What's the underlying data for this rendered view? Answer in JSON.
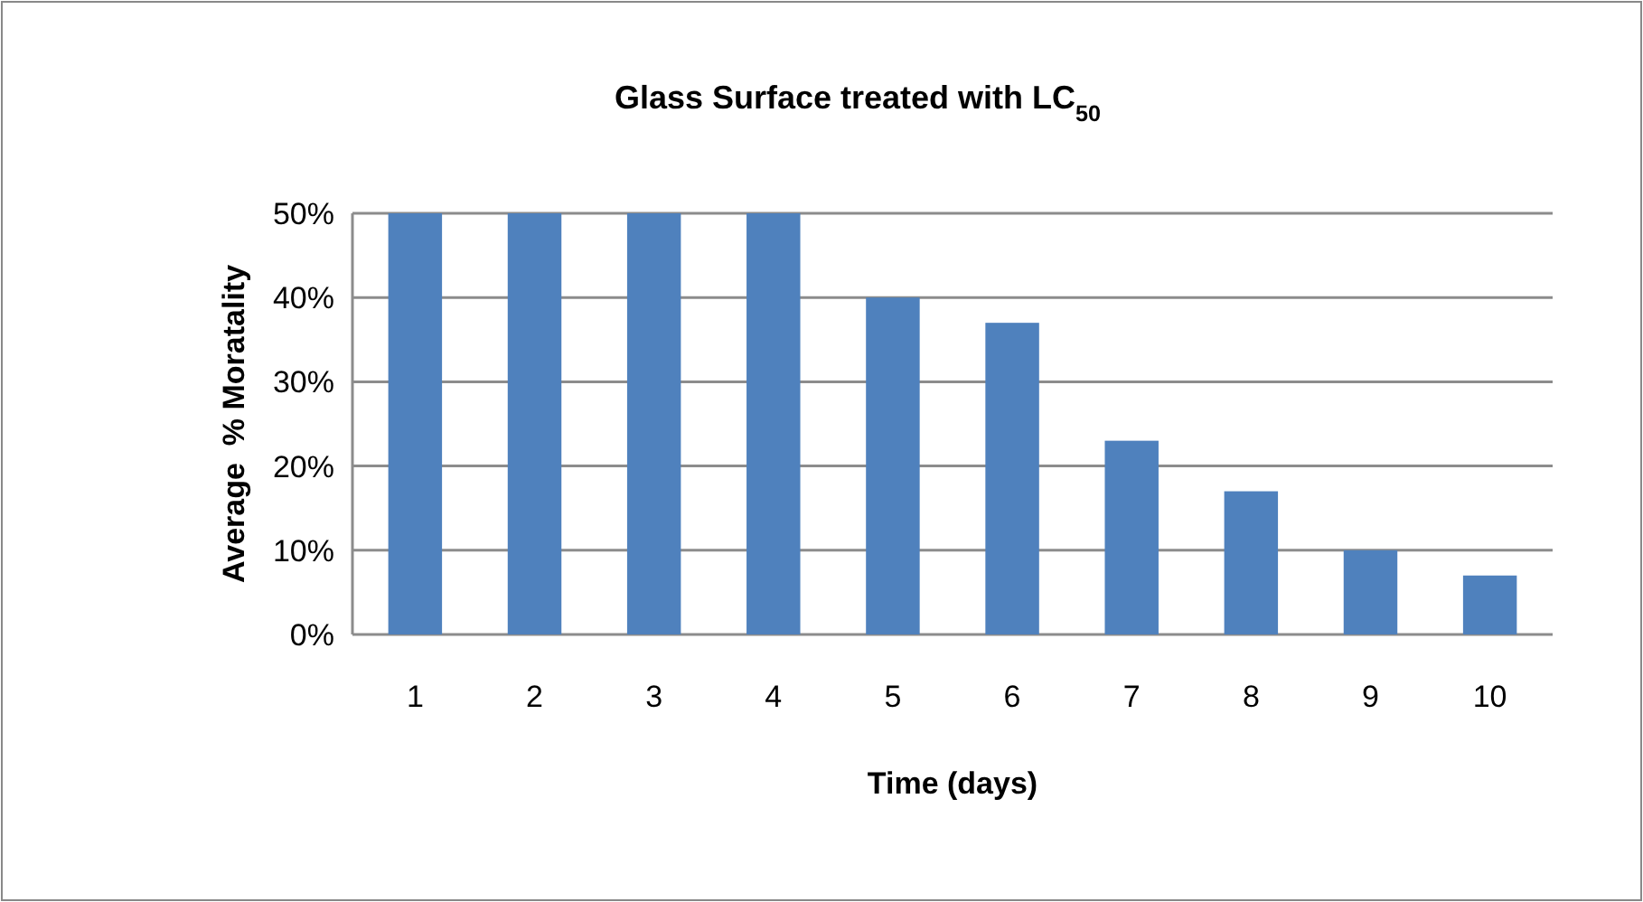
{
  "chart_data": {
    "type": "bar",
    "title": "Glass Surface treated with LC$_{50}$",
    "xlabel": "Time (days)",
    "ylabel": "Average  % Moratality",
    "categories": [
      "1",
      "2",
      "3",
      "4",
      "5",
      "6",
      "7",
      "8",
      "9",
      "10"
    ],
    "values": [
      50,
      50,
      50,
      50,
      40,
      37,
      23,
      17,
      10,
      7
    ],
    "color": "#4f81bd",
    "ylim": [
      0,
      50
    ],
    "yticks": [
      {
        "value": 0,
        "label": "0%"
      },
      {
        "value": 10,
        "label": "10%"
      },
      {
        "value": 20,
        "label": "20%"
      },
      {
        "value": 30,
        "label": "30%"
      },
      {
        "value": 40,
        "label": "40%"
      },
      {
        "value": 50,
        "label": "50%"
      }
    ],
    "grid": "y"
  }
}
